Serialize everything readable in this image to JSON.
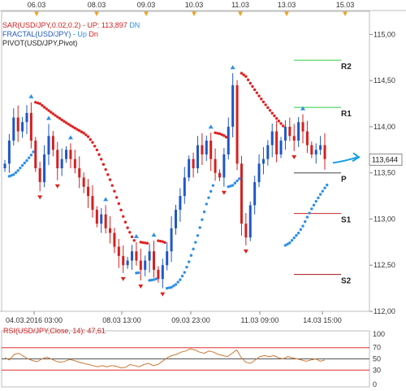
{
  "chart_data": [
    {
      "type": "candlestick",
      "instrument": "USD/JPY",
      "top_date_labels": [
        "06.03",
        "08.03",
        "09.03",
        "10.03",
        "11.03",
        "13.03",
        "15.03"
      ],
      "bottom_time_labels": [
        "04.03.2016 03:00",
        "08.03 13:00",
        "09.03 23:00",
        "11.03 09:00",
        "14.03 15:00"
      ],
      "y_ticks": [
        "112,00",
        "112,50",
        "113,00",
        "113,50",
        "114,00",
        "114,50",
        "115,00"
      ],
      "ylim": [
        112.0,
        115.25
      ],
      "last_price_label": "113,644",
      "last_price": 113.644,
      "legend": {
        "sar_name": "SAR(USD/JPY,0.02,0.2)",
        "sar_value": "UP: 113,897",
        "sar_dir": "DN",
        "fractal_name": "FRACTAL(USD/JPY)",
        "fractal_up": "Up",
        "fractal_dn": "Dn",
        "pivot_name": "PIVOT(USD/JPY,Pivot)"
      },
      "pivot_levels": [
        {
          "label": "R2",
          "value": 114.72,
          "color": "#2ecc40"
        },
        {
          "label": "R1",
          "value": 114.21,
          "color": "#2ecc40"
        },
        {
          "label": "P",
          "value": 113.5,
          "color": "#444444"
        },
        {
          "label": "S1",
          "value": 113.06,
          "color": "#cc2222"
        },
        {
          "label": "S2",
          "value": 112.4,
          "color": "#aa1111"
        }
      ],
      "close_series": [
        113.6,
        113.85,
        114.1,
        113.95,
        114.05,
        114.15,
        113.85,
        113.55,
        113.4,
        113.7,
        113.9,
        113.75,
        113.55,
        113.65,
        113.75,
        113.65,
        113.55,
        113.45,
        113.35,
        113.25,
        113.1,
        112.95,
        113.05,
        112.9,
        112.85,
        112.7,
        112.6,
        112.5,
        112.55,
        112.65,
        112.55,
        112.45,
        112.55,
        112.65,
        112.45,
        112.35,
        112.5,
        112.65,
        112.9,
        113.1,
        113.25,
        113.45,
        113.65,
        113.55,
        113.8,
        113.7,
        113.85,
        113.65,
        113.5,
        113.45,
        113.7,
        114.0,
        114.45,
        113.6,
        112.95,
        112.8,
        113.15,
        113.4,
        113.6,
        113.65,
        113.8,
        113.95,
        113.7,
        113.85,
        114.0,
        113.9,
        113.85,
        114.05,
        113.95,
        113.8,
        113.7,
        113.75,
        113.8,
        113.65
      ],
      "colors": {
        "sar_up": "#2e8fe6",
        "sar_dn": "#e02020",
        "bull": "#1f57c8",
        "bear": "#d42020",
        "accent": "#1a9ee0"
      }
    },
    {
      "type": "line",
      "name": "RSI(USD/JPY,Close, 14)",
      "value_label": "47,61",
      "ylim": [
        0,
        100
      ],
      "levels": [
        "100",
        "70",
        "50",
        "30",
        "0"
      ],
      "values": [
        52,
        48,
        58,
        60,
        55,
        50,
        47,
        45,
        50,
        53,
        50,
        46,
        44,
        46,
        49,
        47,
        44,
        42,
        40,
        38,
        36,
        38,
        36,
        38,
        37,
        34,
        35,
        40,
        38,
        36,
        40,
        42,
        38,
        40,
        46,
        52,
        56,
        58,
        62,
        64,
        68,
        66,
        62,
        60,
        64,
        62,
        58,
        56,
        54,
        60,
        66,
        52,
        44,
        42,
        48,
        54,
        56,
        54,
        56,
        52,
        50,
        54,
        52,
        50,
        48,
        46,
        48,
        50,
        46,
        48
      ],
      "colors": {
        "line": "#cc7733",
        "band": "#e03030"
      }
    }
  ]
}
